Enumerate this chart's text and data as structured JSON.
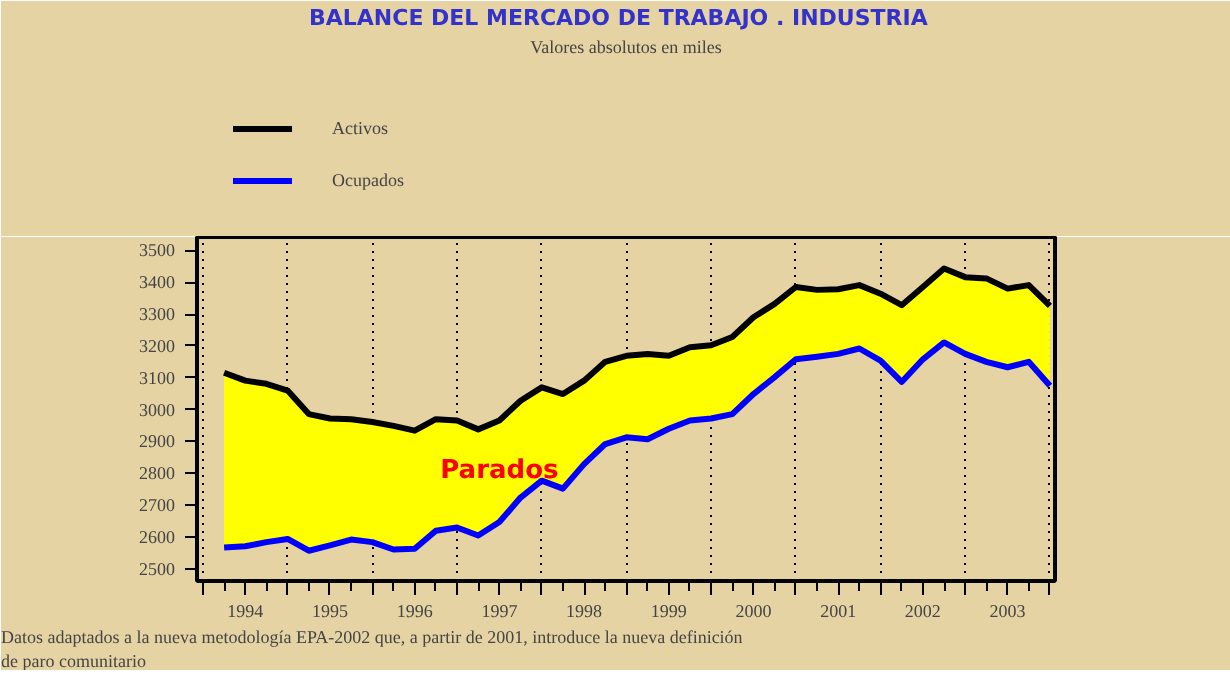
{
  "chart_data": {
    "type": "line",
    "title": "BALANCE DEL MERCADO DE TRABAJO .   INDUSTRIA",
    "subtitle": "Valores absolutos en miles",
    "x": [
      1994.25,
      1994.5,
      1994.75,
      1995,
      1995.25,
      1995.5,
      1995.75,
      1996,
      1996.25,
      1996.5,
      1996.75,
      1997,
      1997.25,
      1997.5,
      1997.75,
      1998,
      1998.25,
      1998.5,
      1998.75,
      1999,
      1999.25,
      1999.5,
      1999.75,
      2000,
      2000.25,
      2000.5,
      2000.75,
      2001,
      2001.25,
      2001.5,
      2001.75,
      2002,
      2002.25,
      2002.5,
      2002.75,
      2003,
      2003.25,
      2003.5,
      2003.75,
      2004
    ],
    "series": [
      {
        "name": "Activos",
        "color": "#000000",
        "lower": [
          2567,
          2571,
          2584,
          2594,
          2557,
          2574,
          2592,
          2584,
          2561,
          2563,
          2620,
          2630,
          2605,
          2647,
          2724,
          2777,
          2752,
          2829,
          2892,
          2913,
          2907,
          2940,
          2966,
          2972,
          2986,
          3049,
          3102,
          3158,
          3166,
          3175,
          3192,
          3154,
          3087,
          3158,
          3211,
          3175,
          3150,
          3133,
          3150,
          3075
        ],
        "upper": [
          3116,
          3091,
          3081,
          3060,
          2986,
          2972,
          2970,
          2961,
          2949,
          2934,
          2970,
          2966,
          2938,
          2966,
          3028,
          3070,
          3049,
          3091,
          3150,
          3169,
          3175,
          3169,
          3196,
          3202,
          3228,
          3290,
          3332,
          3385,
          3376,
          3378,
          3391,
          3364,
          3328,
          3385,
          3443,
          3416,
          3412,
          3380,
          3391,
          3326
        ],
        "values": [
          3116,
          3091,
          3081,
          3060,
          2986,
          2972,
          2970,
          2961,
          2949,
          2934,
          2970,
          2966,
          2938,
          2966,
          3028,
          3070,
          3049,
          3091,
          3150,
          3169,
          3175,
          3169,
          3196,
          3202,
          3228,
          3290,
          3332,
          3385,
          3376,
          3378,
          3391,
          3364,
          3328,
          3385,
          3443,
          3416,
          3412,
          3380,
          3391,
          3326
        ]
      },
      {
        "name": "Ocupados",
        "color": "#0000ff",
        "values": [
          2567,
          2571,
          2584,
          2594,
          2557,
          2574,
          2592,
          2584,
          2561,
          2563,
          2620,
          2630,
          2605,
          2647,
          2724,
          2777,
          2752,
          2829,
          2892,
          2913,
          2907,
          2940,
          2966,
          2972,
          2986,
          3049,
          3102,
          3158,
          3166,
          3175,
          3192,
          3154,
          3087,
          3158,
          3211,
          3175,
          3150,
          3133,
          3150,
          3075
        ]
      }
    ],
    "xlim": [
      1993.93,
      2004.06
    ],
    "xticks": [
      {
        "value": 1994,
        "label": null
      },
      {
        "value": 1994.5,
        "label": "1994"
      },
      {
        "value": 1995,
        "label": null
      },
      {
        "value": 1995.5,
        "label": "1995"
      },
      {
        "value": 1996,
        "label": null
      },
      {
        "value": 1996.5,
        "label": "1996"
      },
      {
        "value": 1997,
        "label": null
      },
      {
        "value": 1997.5,
        "label": "1997"
      },
      {
        "value": 1998,
        "label": null
      },
      {
        "value": 1998.5,
        "label": "1998"
      },
      {
        "value": 1999,
        "label": null
      },
      {
        "value": 1999.5,
        "label": "1999"
      },
      {
        "value": 2000,
        "label": null
      },
      {
        "value": 2000.5,
        "label": "2000"
      },
      {
        "value": 2001,
        "label": null
      },
      {
        "value": 2001.5,
        "label": "2001"
      },
      {
        "value": 2002,
        "label": null
      },
      {
        "value": 2002.5,
        "label": "2002"
      },
      {
        "value": 2003,
        "label": null
      },
      {
        "value": 2003.5,
        "label": "2003"
      },
      {
        "value": 2004,
        "label": null
      }
    ],
    "ylim": [
      2462,
      3542
    ],
    "yticks": [
      2500,
      2600,
      2700,
      2800,
      2900,
      3000,
      3100,
      3200,
      3300,
      3400,
      3500
    ],
    "grid": "x",
    "legend": "top left",
    "line_style": "solid",
    "annotations": [
      "Parados",
      "Datos adaptados a la nueva metodología EPA-2002 que, a partir de 2001, introduce la nueva definición de paro comunitario"
    ]
  }
}
